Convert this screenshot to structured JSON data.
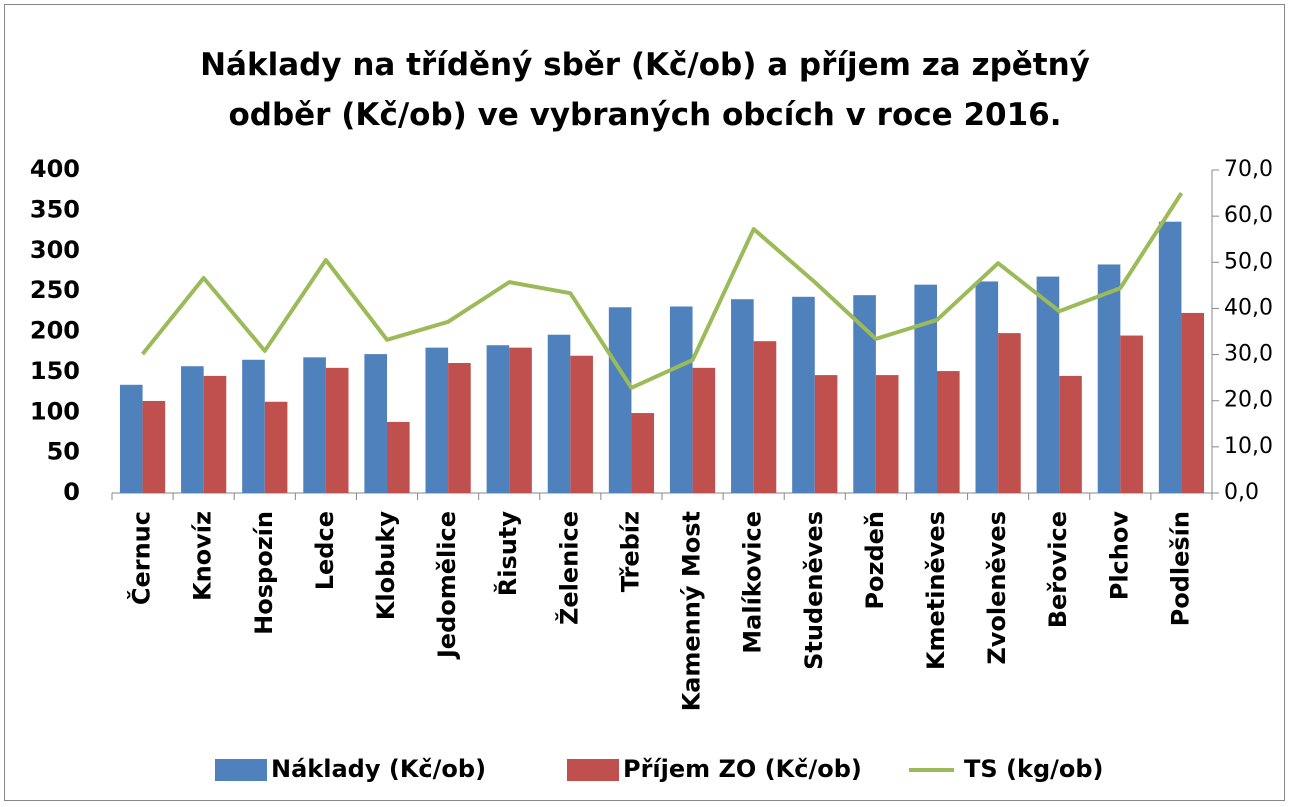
{
  "chart_data": {
    "type": "bar",
    "title": "Náklady na tříděný sběr (Kč/ob) a příjem za zpětný odběr (Kč/ob) ve vybraných obcích v roce 2016.",
    "categories": [
      "Černuc",
      "Knovíz",
      "Hospozín",
      "Ledce",
      "Klobuky",
      "Jedomělice",
      "Řisuty",
      "Želenice",
      "Třebíz",
      "Kamenný Most",
      "Malíkovice",
      "Studeněves",
      "Pozdeň",
      "Kmetiněves",
      "Zvoleněves",
      "Beřovice",
      "Plchov",
      "Podlešín"
    ],
    "series": [
      {
        "name": "Náklady (Kč/ob)",
        "color": "#4f81bd",
        "values": [
          134,
          157,
          165,
          168,
          172,
          180,
          183,
          196,
          230,
          231,
          240,
          243,
          245,
          258,
          262,
          268,
          283,
          336
        ]
      },
      {
        "name": "Příjem ZO (Kč/ob)",
        "color": "#c0504d",
        "values": [
          114,
          145,
          113,
          155,
          88,
          161,
          180,
          170,
          99,
          155,
          188,
          146,
          146,
          151,
          198,
          145,
          195,
          223
        ]
      },
      {
        "name": "TS (kg/ob)",
        "color": "#9bbb59",
        "type": "line",
        "axis": "y2",
        "values": [
          30.1,
          46.6,
          30.8,
          50.5,
          33.2,
          37.1,
          45.7,
          43.3,
          22.8,
          28.8,
          57.2,
          45.7,
          33.4,
          37.5,
          49.8,
          39.4,
          44.4,
          65.0
        ]
      }
    ],
    "ylim": [
      0,
      400
    ],
    "yticks": [
      0,
      50,
      100,
      150,
      200,
      250,
      300,
      350,
      400
    ],
    "y2lim": [
      0,
      70
    ],
    "y2ticks": [
      {
        "value": 0,
        "label": "0,0"
      },
      {
        "value": 10,
        "label": "10,0"
      },
      {
        "value": 20,
        "label": "20,0"
      },
      {
        "value": 30,
        "label": "30,0"
      },
      {
        "value": 40,
        "label": "40,0"
      },
      {
        "value": 50,
        "label": "50,0"
      },
      {
        "value": 60,
        "label": "60,0"
      },
      {
        "value": 70,
        "label": "70,0"
      }
    ],
    "legend": "bottom"
  }
}
